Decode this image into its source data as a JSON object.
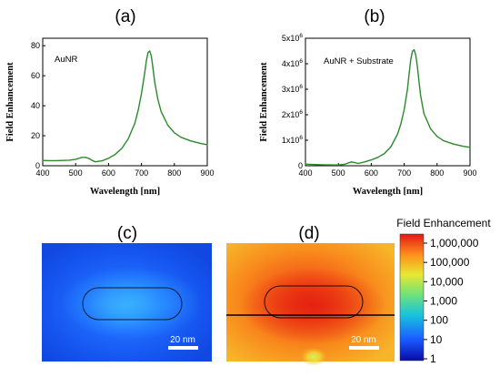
{
  "chart_data": [
    {
      "type": "line",
      "panel_label": "(a)",
      "inset_text": "AuNR",
      "xlabel": "Wavelength [nm]",
      "ylabel": "Field Enhancement",
      "xlim": [
        400,
        900
      ],
      "ylim": [
        0,
        85
      ],
      "x_ticks": [
        "400",
        "500",
        "600",
        "700",
        "800",
        "900"
      ],
      "y_ticks": [
        "0",
        "20",
        "40",
        "60",
        "80"
      ],
      "color": "#2b8a2b",
      "series": [
        {
          "x": [
            400,
            420,
            440,
            460,
            480,
            500,
            510,
            520,
            530,
            540,
            550,
            560,
            580,
            600,
            620,
            640,
            660,
            680,
            690,
            700,
            710,
            715,
            720,
            725,
            730,
            735,
            740,
            750,
            760,
            780,
            800,
            820,
            850,
            880,
            900
          ],
          "values": [
            3.5,
            3.4,
            3.4,
            3.5,
            3.7,
            4.3,
            5.0,
            5.6,
            5.6,
            4.9,
            3.6,
            2.6,
            3.3,
            5.0,
            7.5,
            11.5,
            18.0,
            28.5,
            37.0,
            48.0,
            62.0,
            70.0,
            75.5,
            76.5,
            73.0,
            65.0,
            56.0,
            44.0,
            36.0,
            27.0,
            22.0,
            19.0,
            16.5,
            14.8,
            14.0
          ]
        }
      ]
    },
    {
      "type": "line",
      "panel_label": "(b)",
      "inset_text": "AuNR + Substrate",
      "xlabel": "Wavelength [nm]",
      "ylabel": "Field Enhancement",
      "xlim": [
        400,
        900
      ],
      "ylim": [
        0,
        5000000
      ],
      "x_ticks": [
        "400",
        "500",
        "600",
        "700",
        "800",
        "900"
      ],
      "y_ticks": [
        {
          "base": "0",
          "exp": ""
        },
        {
          "base": "1x10",
          "exp": "6"
        },
        {
          "base": "2x10",
          "exp": "6"
        },
        {
          "base": "3x10",
          "exp": "6"
        },
        {
          "base": "4x10",
          "exp": "6"
        },
        {
          "base": "5x10",
          "exp": "6"
        }
      ],
      "color": "#2b8a2b",
      "series": [
        {
          "x": [
            400,
            450,
            500,
            520,
            530,
            540,
            550,
            560,
            580,
            600,
            620,
            640,
            660,
            680,
            690,
            700,
            710,
            715,
            720,
            725,
            730,
            735,
            740,
            745,
            750,
            760,
            780,
            800,
            820,
            850,
            880,
            900
          ],
          "values": [
            60000,
            40000,
            30000,
            60000,
            110000,
            150000,
            120000,
            90000,
            150000,
            230000,
            330000,
            480000,
            750000,
            1250000,
            1650000,
            2200000,
            3000000,
            3600000,
            4150000,
            4480000,
            4550000,
            4350000,
            3900000,
            3300000,
            2750000,
            2050000,
            1450000,
            1150000,
            980000,
            850000,
            760000,
            720000
          ]
        }
      ]
    }
  ],
  "maps": [
    {
      "panel_label": "(c)",
      "scale_label": "20 nm"
    },
    {
      "panel_label": "(d)",
      "scale_label": "20 nm"
    }
  ],
  "colorbar": {
    "title": "Field Enhancement",
    "tick_labels": [
      "1,000,000",
      "100,000",
      "10,000",
      "1,000",
      "100",
      "10",
      "1"
    ],
    "colors": [
      "#1a1ad0",
      "#1a6bff",
      "#19c8d8",
      "#7fe36e",
      "#e8e832",
      "#ff8a1a",
      "#e21414"
    ]
  }
}
